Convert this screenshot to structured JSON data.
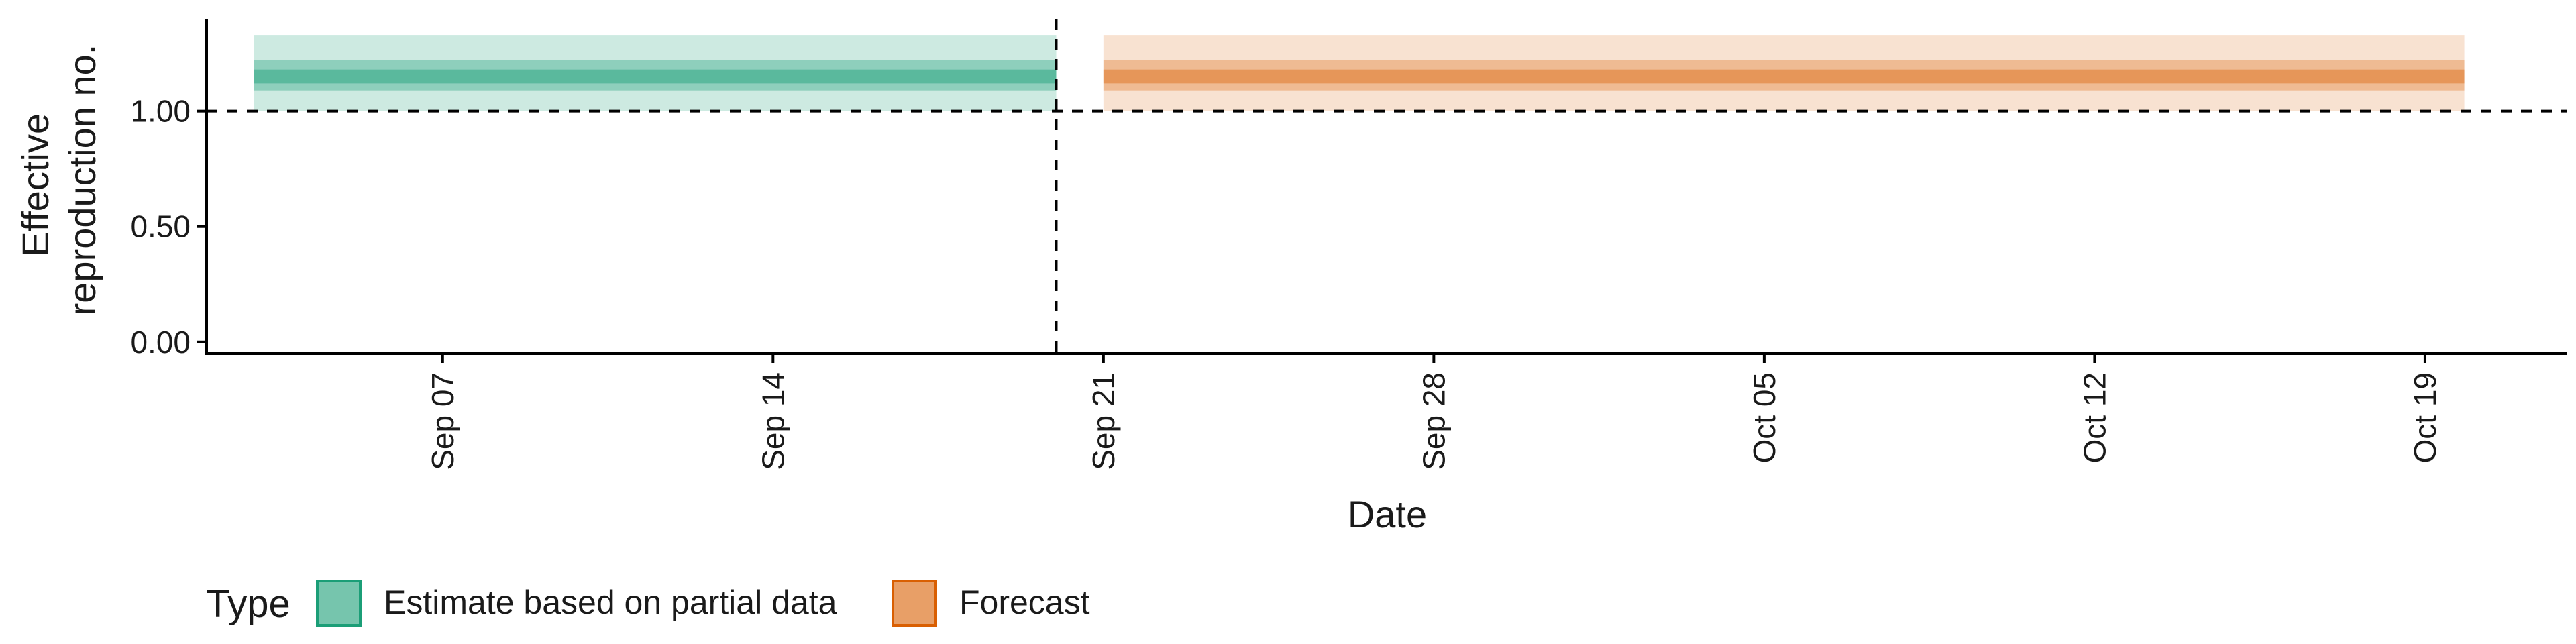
{
  "chart_data": {
    "type": "area",
    "xlabel": "Date",
    "ylabel_lines": [
      "Effective",
      "reproduction no."
    ],
    "x_range": [
      "2020-09-02",
      "2020-10-22"
    ],
    "ylim": [
      -0.05,
      1.4
    ],
    "y_ticks": [
      0.0,
      0.5,
      1.0
    ],
    "y_tick_labels": [
      "0.00",
      "0.50",
      "1.00"
    ],
    "x_ticks": [
      "2020-09-07",
      "2020-09-14",
      "2020-09-21",
      "2020-09-28",
      "2020-10-05",
      "2020-10-12",
      "2020-10-19"
    ],
    "x_tick_labels": [
      "Sep 07",
      "Sep 14",
      "Sep 21",
      "Sep 28",
      "Oct 05",
      "Oct 12",
      "Oct 19"
    ],
    "reference_hline": 1.0,
    "reference_vline": "2020-09-20",
    "grid": false,
    "legend": {
      "title": "Type",
      "position": "bottom-left",
      "entries": [
        "Estimate based on partial data",
        "Forecast"
      ]
    },
    "series": [
      {
        "name": "Estimate based on partial data",
        "color": "#1b9e77",
        "x_start": "2020-09-03",
        "x_end": "2020-09-20",
        "median": 1.15,
        "bands": [
          {
            "lower": 1.0,
            "upper": 1.33,
            "opacity": 0.22
          },
          {
            "lower": 1.09,
            "upper": 1.22,
            "opacity": 0.35
          },
          {
            "lower": 1.12,
            "upper": 1.18,
            "opacity": 0.45
          }
        ]
      },
      {
        "name": "Forecast",
        "color": "#d95f02",
        "x_start": "2020-09-21",
        "x_end": "2020-10-19T20:00",
        "median": 1.15,
        "bands": [
          {
            "lower": 1.0,
            "upper": 1.33,
            "opacity": 0.18
          },
          {
            "lower": 1.09,
            "upper": 1.22,
            "opacity": 0.3
          },
          {
            "lower": 1.12,
            "upper": 1.18,
            "opacity": 0.4
          }
        ]
      }
    ]
  }
}
